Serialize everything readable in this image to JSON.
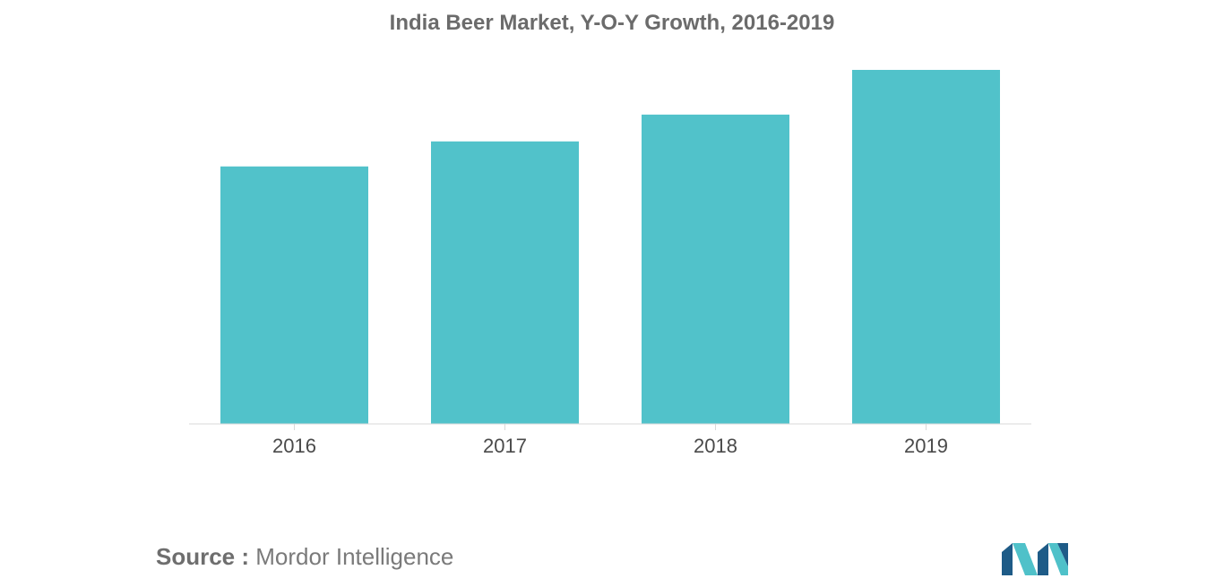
{
  "title": "India Beer Market, Y-O-Y Growth, 2016-2019",
  "source": {
    "label": "Source :",
    "name": "Mordor Intelligence"
  },
  "logo_icon": "mordor-intelligence-logo",
  "colors": {
    "bar": "#51c2ca",
    "axis": "#d9d9d9",
    "tick_text": "#4a4a4a",
    "title_text": "#6b6b6b",
    "logo_dark": "#1e5b87",
    "logo_light": "#4fc1c9"
  },
  "chart_data": {
    "type": "bar",
    "title": "India Beer Market, Y-O-Y Growth, 2016-2019",
    "categories": [
      "2016",
      "2017",
      "2018",
      "2019"
    ],
    "values": [
      72,
      79,
      86.5,
      99
    ],
    "ylim": [
      0,
      100
    ],
    "xlabel": "",
    "ylabel": "",
    "grid": false,
    "legend": "none"
  }
}
